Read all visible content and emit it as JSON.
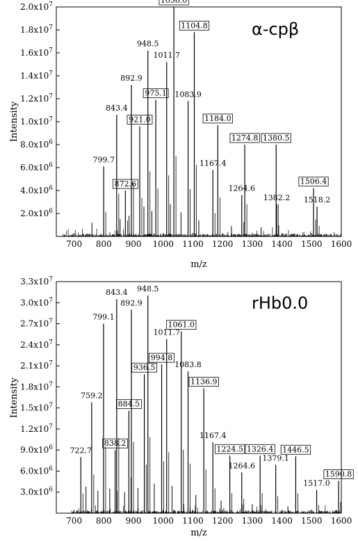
{
  "chart_data": [
    {
      "type": "line",
      "title": "α-cpβ",
      "xlabel": "m/z",
      "ylabel": "Intensity",
      "xlim": [
        640,
        1600
      ],
      "ylim": [
        0,
        20000000
      ],
      "x_ticks": [
        700,
        800,
        900,
        1000,
        1100,
        1200,
        1300,
        1400,
        1500,
        1600
      ],
      "x_tick_labels": [
        "700",
        "800",
        "900",
        "1000",
        "1100",
        "1200",
        "1300",
        "1400",
        "1500",
        "1600"
      ],
      "y_ticks": [
        {
          "value": 2000000,
          "mantissa": "2.0x10",
          "exp": "6"
        },
        {
          "value": 4000000,
          "mantissa": "4.0x10",
          "exp": "6"
        },
        {
          "value": 6000000,
          "mantissa": "6.0x10",
          "exp": "6"
        },
        {
          "value": 8000000,
          "mantissa": "8.0x10",
          "exp": "6"
        },
        {
          "value": 10000000,
          "mantissa": "1.0x10",
          "exp": "7"
        },
        {
          "value": 12000000,
          "mantissa": "1.2x10",
          "exp": "7"
        },
        {
          "value": 14000000,
          "mantissa": "1.4x10",
          "exp": "7"
        },
        {
          "value": 16000000,
          "mantissa": "1.6x10",
          "exp": "7"
        },
        {
          "value": 18000000,
          "mantissa": "1.8x10",
          "exp": "7"
        },
        {
          "value": 20000000,
          "mantissa": "2.0x10",
          "exp": "7"
        }
      ],
      "peaks": [
        {
          "mz": 799.7,
          "intensity": 6100000,
          "label": "799.7",
          "boxed": false
        },
        {
          "mz": 843.4,
          "intensity": 10600000,
          "label": "843.4",
          "boxed": false
        },
        {
          "mz": 872.6,
          "intensity": 4000000,
          "label": "872.6",
          "boxed": true
        },
        {
          "mz": 892.9,
          "intensity": 13200000,
          "label": "892.9",
          "boxed": false
        },
        {
          "mz": 921.0,
          "intensity": 9600000,
          "label": "921.0",
          "boxed": true
        },
        {
          "mz": 948.5,
          "intensity": 16200000,
          "label": "948.5",
          "boxed": false
        },
        {
          "mz": 975.1,
          "intensity": 11900000,
          "label": "975.1",
          "boxed": true
        },
        {
          "mz": 1011.7,
          "intensity": 15200000,
          "label": "1011.7",
          "boxed": false
        },
        {
          "mz": 1036.0,
          "intensity": 20000000,
          "label": "1036.0",
          "boxed": true
        },
        {
          "mz": 1083.9,
          "intensity": 11800000,
          "label": "1083.9",
          "boxed": false
        },
        {
          "mz": 1104.8,
          "intensity": 17800000,
          "label": "1104.8",
          "boxed": true
        },
        {
          "mz": 1167.4,
          "intensity": 5800000,
          "label": "1167.4",
          "boxed": false
        },
        {
          "mz": 1184.0,
          "intensity": 9700000,
          "label": "1184.0",
          "boxed": true
        },
        {
          "mz": 1264.6,
          "intensity": 3600000,
          "label": "1264.6",
          "boxed": false
        },
        {
          "mz": 1274.8,
          "intensity": 8000000,
          "label": "1274.8",
          "boxed": true
        },
        {
          "mz": 1380.5,
          "intensity": 8000000,
          "label": "1380.5",
          "boxed": true
        },
        {
          "mz": 1382.2,
          "intensity": 2800000,
          "label": "1382.2",
          "boxed": false
        },
        {
          "mz": 1506.4,
          "intensity": 4200000,
          "label": "1506.4",
          "boxed": true
        },
        {
          "mz": 1518.2,
          "intensity": 2600000,
          "label": "1518.2",
          "boxed": false
        }
      ],
      "minor_peaks": [
        {
          "mz": 760,
          "intensity": 1200000
        },
        {
          "mz": 855,
          "intensity": 1500000
        },
        {
          "mz": 885,
          "intensity": 1800000
        },
        {
          "mz": 935,
          "intensity": 2600000
        },
        {
          "mz": 962,
          "intensity": 2200000
        },
        {
          "mz": 1024,
          "intensity": 2800000
        },
        {
          "mz": 1060,
          "intensity": 2100000
        },
        {
          "mz": 1120,
          "intensity": 1400000
        },
        {
          "mz": 1230,
          "intensity": 900000
        },
        {
          "mz": 1330,
          "intensity": 800000
        }
      ]
    },
    {
      "type": "line",
      "title": "rHb0.0",
      "xlabel": "m/z",
      "ylabel": "Intensity",
      "xlim": [
        640,
        1600
      ],
      "ylim": [
        0,
        33000000
      ],
      "x_ticks": [
        700,
        800,
        900,
        1000,
        1100,
        1200,
        1300,
        1400,
        1500,
        1600
      ],
      "x_tick_labels": [
        "700",
        "800",
        "900",
        "1000",
        "1100",
        "1200",
        "1300",
        "1400",
        "1500",
        "1600"
      ],
      "y_ticks": [
        {
          "value": 3000000,
          "mantissa": "3.0x10",
          "exp": "6"
        },
        {
          "value": 6000000,
          "mantissa": "6.0x10",
          "exp": "6"
        },
        {
          "value": 9000000,
          "mantissa": "9.0x10",
          "exp": "6"
        },
        {
          "value": 12000000,
          "mantissa": "1.2x10",
          "exp": "7"
        },
        {
          "value": 15000000,
          "mantissa": "1.5x10",
          "exp": "7"
        },
        {
          "value": 18000000,
          "mantissa": "1.8x10",
          "exp": "7"
        },
        {
          "value": 21000000,
          "mantissa": "2.1x10",
          "exp": "7"
        },
        {
          "value": 24000000,
          "mantissa": "2.4x10",
          "exp": "7"
        },
        {
          "value": 27000000,
          "mantissa": "2.7x10",
          "exp": "7"
        },
        {
          "value": 30000000,
          "mantissa": "3.0x10",
          "exp": "7"
        },
        {
          "value": 33000000,
          "mantissa": "3.3x10",
          "exp": "7"
        }
      ],
      "peaks": [
        {
          "mz": 722.7,
          "intensity": 8000000,
          "label": "722.7",
          "boxed": false
        },
        {
          "mz": 759.2,
          "intensity": 15800000,
          "label": "759.2",
          "boxed": false
        },
        {
          "mz": 799.1,
          "intensity": 27000000,
          "label": "799.1",
          "boxed": false
        },
        {
          "mz": 838.2,
          "intensity": 9000000,
          "label": "838.2",
          "boxed": true
        },
        {
          "mz": 843.4,
          "intensity": 30500000,
          "label": "843.4",
          "boxed": false
        },
        {
          "mz": 884.5,
          "intensity": 14600000,
          "label": "884.5",
          "boxed": true
        },
        {
          "mz": 892.9,
          "intensity": 29000000,
          "label": "892.9",
          "boxed": false
        },
        {
          "mz": 936.5,
          "intensity": 19800000,
          "label": "936.5",
          "boxed": true
        },
        {
          "mz": 948.5,
          "intensity": 31000000,
          "label": "948.5",
          "boxed": false
        },
        {
          "mz": 994.8,
          "intensity": 21200000,
          "label": "994.8",
          "boxed": true
        },
        {
          "mz": 1011.7,
          "intensity": 24800000,
          "label": "1011.7",
          "boxed": false
        },
        {
          "mz": 1061.0,
          "intensity": 25900000,
          "label": "1061.0",
          "boxed": true
        },
        {
          "mz": 1083.8,
          "intensity": 20200000,
          "label": "1083.8",
          "boxed": false
        },
        {
          "mz": 1136.9,
          "intensity": 17800000,
          "label": "1136.9",
          "boxed": true
        },
        {
          "mz": 1167.4,
          "intensity": 10100000,
          "label": "1167.4",
          "boxed": false
        },
        {
          "mz": 1224.5,
          "intensity": 8200000,
          "label": "1224.5",
          "boxed": true
        },
        {
          "mz": 1264.6,
          "intensity": 5800000,
          "label": "1264.6",
          "boxed": false
        },
        {
          "mz": 1326.4,
          "intensity": 8200000,
          "label": "1326.4",
          "boxed": true
        },
        {
          "mz": 1379.1,
          "intensity": 6900000,
          "label": "1379.1",
          "boxed": false
        },
        {
          "mz": 1446.5,
          "intensity": 8100000,
          "label": "1446.5",
          "boxed": true
        },
        {
          "mz": 1517.0,
          "intensity": 3300000,
          "label": "1517.0",
          "boxed": false
        },
        {
          "mz": 1590.8,
          "intensity": 4600000,
          "label": "1590.8",
          "boxed": true
        }
      ],
      "minor_peaks": [
        {
          "mz": 740,
          "intensity": 3800000
        },
        {
          "mz": 780,
          "intensity": 3200000
        },
        {
          "mz": 820,
          "intensity": 3500000
        },
        {
          "mz": 870,
          "intensity": 3000000
        },
        {
          "mz": 915,
          "intensity": 3600000
        },
        {
          "mz": 970,
          "intensity": 4200000
        },
        {
          "mz": 1030,
          "intensity": 3900000
        },
        {
          "mz": 1110,
          "intensity": 2600000
        },
        {
          "mz": 1195,
          "intensity": 1800000
        },
        {
          "mz": 1300,
          "intensity": 1300000
        },
        {
          "mz": 1420,
          "intensity": 1000000
        }
      ]
    }
  ]
}
